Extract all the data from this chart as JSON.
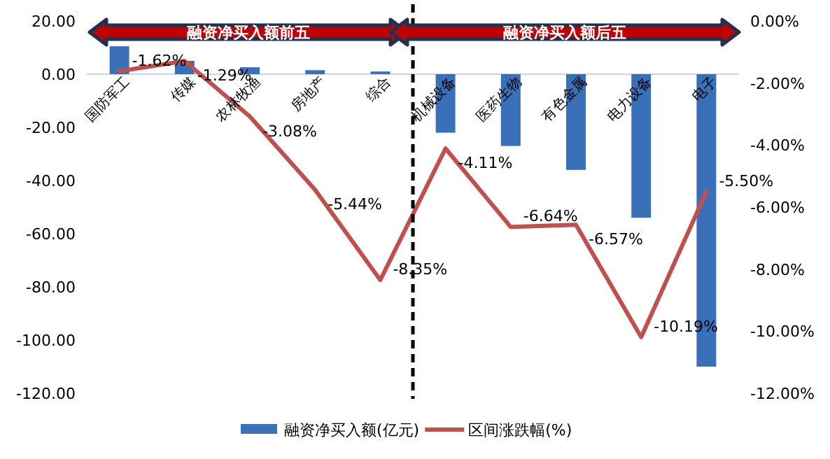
{
  "chart_data": {
    "type": "bar",
    "categories": [
      "国防军工",
      "传媒",
      "农林牧渔",
      "房地产",
      "综合",
      "机械设备",
      "医药生物",
      "有色金属",
      "电力设备",
      "电子"
    ],
    "series": [
      {
        "name": "融资净买入额(亿元)",
        "color": "#3a70b8",
        "values": [
          10.5,
          5,
          2.6,
          1.5,
          1,
          -22,
          -27,
          -36,
          -54,
          -110
        ]
      },
      {
        "name": "区间涨跌幅(%)",
        "type": "line",
        "axis": "y2",
        "color": "#c0504d",
        "values": [
          -1.62,
          -1.29,
          -3.08,
          -5.44,
          -8.35,
          -4.11,
          -6.64,
          -6.57,
          -10.19,
          -5.5
        ],
        "value_labels": [
          "-1.62%",
          "-1.29%",
          "-3.08%",
          "-5.44%",
          "-8.35%",
          "-4.11%",
          "-6.64%",
          "-6.57%",
          "-10.19%",
          "-5.50%"
        ]
      }
    ],
    "ylim": [
      -120,
      20
    ],
    "yticks": [
      {
        "value": 20,
        "label": "20.00"
      },
      {
        "value": 0,
        "label": "0.00"
      },
      {
        "value": -20,
        "label": "-20.00"
      },
      {
        "value": -40,
        "label": "-40.00"
      },
      {
        "value": -60,
        "label": "-60.00"
      },
      {
        "value": -80,
        "label": "-80.00"
      },
      {
        "value": -100,
        "label": "-100.00"
      },
      {
        "value": -120,
        "label": "-120.00"
      }
    ],
    "y2lim": [
      -12,
      0
    ],
    "y2ticks": [
      {
        "value": 0,
        "label": "0.00%"
      },
      {
        "value": -2,
        "label": "-2.00%"
      },
      {
        "value": -4,
        "label": "-4.00%"
      },
      {
        "value": -6,
        "label": "-6.00%"
      },
      {
        "value": -8,
        "label": "-8.00%"
      },
      {
        "value": -10,
        "label": "-10.00%"
      },
      {
        "value": -12,
        "label": "-12.00%"
      }
    ],
    "annotations": [
      "融资净买入额前五",
      "融资净买入额后五"
    ],
    "legend": "bottom",
    "grid": false
  }
}
